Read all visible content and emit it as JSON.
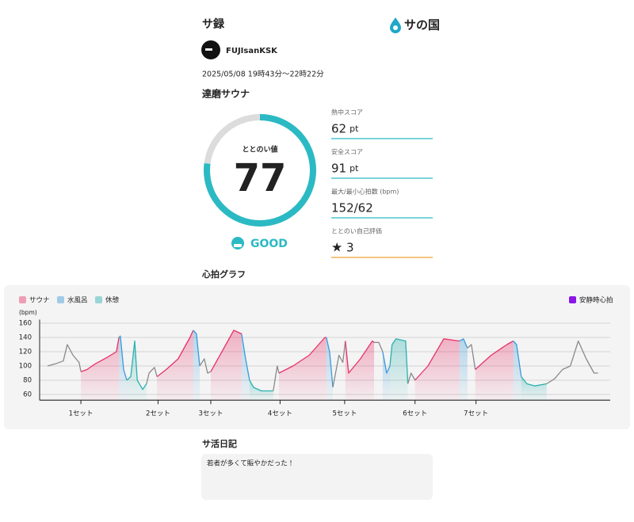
{
  "header": {
    "title": "サ録",
    "logo": "サの国"
  },
  "user": {
    "name": "FUJIsanKSK"
  },
  "date": "2025/05/08 19時43分〜22時22分",
  "facility": "達磨サウナ",
  "score": {
    "label": "ととのい値",
    "value": 77,
    "range": [
      0,
      100
    ],
    "rating": "GOOD"
  },
  "metrics": [
    {
      "label": "熱中スコア",
      "value": 62,
      "unit": "pt"
    },
    {
      "label": "安全スコア",
      "value": 91,
      "unit": "pt"
    },
    {
      "label": "最大/最小心拍数 (bpm)",
      "value": "152/62"
    },
    {
      "label": "ととのい自己評価",
      "value": 3
    }
  ],
  "chart_title": "心拍グラフ",
  "chart_data": {
    "type": "line",
    "y_label": "(bpm)",
    "ylim": [
      52,
      165
    ],
    "yticks": [
      60,
      80,
      100,
      120,
      140,
      160
    ],
    "xlim": [
      0,
      159
    ],
    "xticks": [
      {
        "value": 11.5,
        "label": "1セット"
      },
      {
        "value": 33,
        "label": "2セット"
      },
      {
        "value": 47.7,
        "label": "3セット"
      },
      {
        "value": 67,
        "label": "4セット"
      },
      {
        "value": 85,
        "label": "5セット"
      },
      {
        "value": 104.6,
        "label": "6セット"
      },
      {
        "value": 121.6,
        "label": "7セット"
      }
    ],
    "grid": true,
    "other_color": "#8a8a8a",
    "series": [
      {
        "name": "サウナ",
        "color": "#e8336b"
      },
      {
        "name": "水風呂",
        "color": "#3a9ad9"
      },
      {
        "name": "休憩",
        "color": "#2bb0b0"
      }
    ],
    "legend_extra": {
      "name": "安静時心拍",
      "color": "#8a17e6"
    },
    "x": [
      2.2,
      4.4,
      6.6,
      7.7,
      9.3,
      11.0,
      11.5,
      13.2,
      15.5,
      18.8,
      21.4,
      22.1,
      22.5,
      23.4,
      24.3,
      25.4,
      26.5,
      27.2,
      28.7,
      29.8,
      30.5,
      32.0,
      32.7,
      35.3,
      38.6,
      41.9,
      42.8,
      43.7,
      44.6,
      45.9,
      46.8,
      47.7,
      50.8,
      54.1,
      56.3,
      57.4,
      58.5,
      59.6,
      61.8,
      65.1,
      66.2,
      66.7,
      70.6,
      75.1,
      79.5,
      79.9,
      80.8,
      81.7,
      83.4,
      84.5,
      85.2,
      86.1,
      89.4,
      92.7,
      93.2,
      94.5,
      95.6,
      96.7,
      97.6,
      98.2,
      99.3,
      102.0,
      102.6,
      103.5,
      104.6,
      108.2,
      112.6,
      117.0,
      118.1,
      119.2,
      120.3,
      121.4,
      125.8,
      130.2,
      132.0,
      132.9,
      134.2,
      135.8,
      138.0,
      141.3,
      143.5,
      145.7,
      147.9,
      150.1,
      152.3,
      154.5,
      155.6
    ],
    "values": [
      100,
      103,
      107,
      130,
      115,
      105,
      92,
      95,
      103,
      112,
      120,
      140,
      142,
      95,
      80,
      85,
      135,
      80,
      67,
      75,
      90,
      98,
      85,
      95,
      110,
      140,
      150,
      145,
      100,
      110,
      90,
      92,
      120,
      150,
      145,
      110,
      80,
      70,
      65,
      65,
      100,
      90,
      100,
      115,
      140,
      140,
      120,
      70,
      115,
      105,
      135,
      90,
      110,
      135,
      133,
      133,
      120,
      90,
      100,
      130,
      138,
      135,
      75,
      90,
      80,
      100,
      138,
      135,
      138,
      125,
      130,
      95,
      115,
      130,
      135,
      130,
      85,
      75,
      72,
      75,
      82,
      95,
      100,
      135,
      110,
      90,
      90
    ],
    "phase": [
      null,
      null,
      null,
      null,
      null,
      null,
      0,
      0,
      0,
      0,
      0,
      1,
      1,
      1,
      2,
      2,
      2,
      2,
      2,
      null,
      null,
      null,
      0,
      0,
      0,
      0,
      1,
      1,
      null,
      null,
      null,
      0,
      0,
      0,
      1,
      1,
      2,
      2,
      2,
      null,
      null,
      0,
      0,
      0,
      0,
      1,
      1,
      null,
      null,
      null,
      0,
      0,
      0,
      0,
      null,
      null,
      1,
      1,
      2,
      2,
      2,
      2,
      null,
      null,
      0,
      0,
      0,
      1,
      1,
      null,
      null,
      0,
      0,
      0,
      1,
      1,
      2,
      2,
      2,
      null,
      null,
      null,
      null,
      null,
      null,
      null,
      null
    ]
  },
  "diary": {
    "title": "サ活日記",
    "text": "若者が多くて賑やかだった！"
  }
}
